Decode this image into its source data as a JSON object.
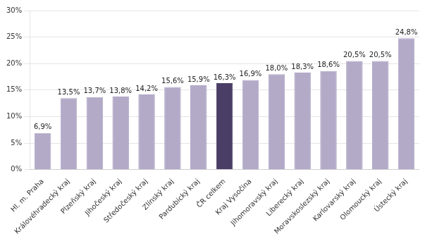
{
  "chart_data": {
    "type": "bar",
    "categories": [
      "Hl. m. Praha",
      "Královéhradecký kraj",
      "Plzeňský kraj",
      "Jihočeský kraj",
      "Středočeský kraj",
      "Zlínský kraj",
      "Pardubický kraj",
      "ČR celkem",
      "Kraj Vysočina",
      "Jihomoravský kraj",
      "Liberecký kraj",
      "Moravskoslezský kraj",
      "Karlovarský kraj",
      "Olomoucký kraj",
      "Ústecký kraj"
    ],
    "values": [
      6.9,
      13.5,
      13.7,
      13.8,
      14.2,
      15.6,
      15.9,
      16.3,
      16.9,
      18.0,
      18.3,
      18.6,
      20.5,
      20.5,
      24.8
    ],
    "value_labels": [
      "6,9%",
      "13,5%",
      "13,7%",
      "13,8%",
      "14,2%",
      "15,6%",
      "15,9%",
      "16,3%",
      "16,9%",
      "18,0%",
      "18,3%",
      "18,6%",
      "20,5%",
      "20,5%",
      "24,8%"
    ],
    "colors": [
      "#b3aac8",
      "#b3aac8",
      "#b3aac8",
      "#b3aac8",
      "#b3aac8",
      "#b3aac8",
      "#b3aac8",
      "#4a3d66",
      "#b3aac8",
      "#b3aac8",
      "#b3aac8",
      "#b3aac8",
      "#b3aac8",
      "#b3aac8",
      "#b3aac8"
    ],
    "ylim": [
      0,
      30
    ],
    "yticks": [
      {
        "value": 0,
        "label": "0%"
      },
      {
        "value": 5,
        "label": "5%"
      },
      {
        "value": 10,
        "label": "10%"
      },
      {
        "value": 15,
        "label": "15%"
      },
      {
        "value": 20,
        "label": "20%"
      },
      {
        "value": 25,
        "label": "25%"
      },
      {
        "value": 30,
        "label": "30%"
      }
    ],
    "grid": true,
    "data_labels": true
  }
}
